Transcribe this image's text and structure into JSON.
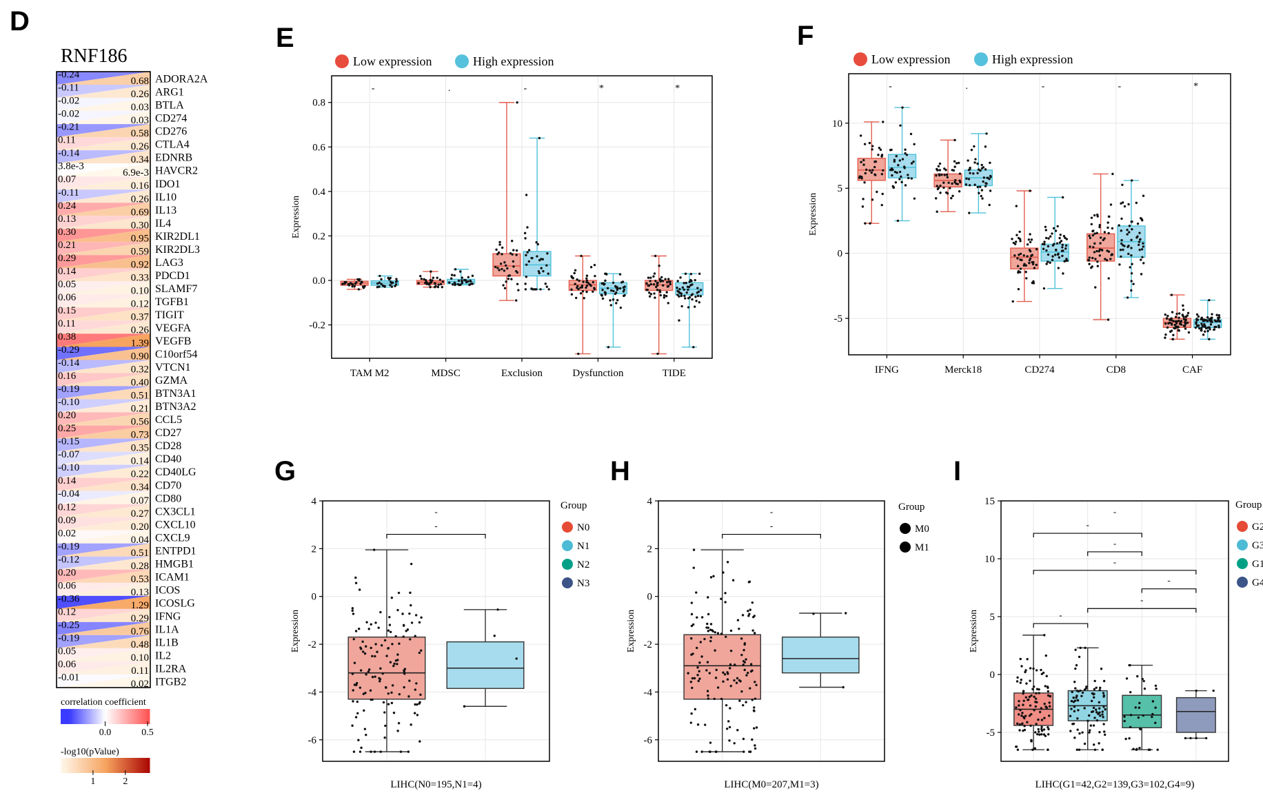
{
  "panels": {
    "D": "D",
    "E": "E",
    "F": "F",
    "G": "G",
    "H": "H",
    "I": "I"
  },
  "colors": {
    "low": "#e35d4e",
    "high": "#4fc1d9",
    "lowFill": "#f0a69b",
    "highFill": "#a6dced",
    "N0": "#e64b35",
    "N1": "#4dbbd5",
    "N2": "#00a087",
    "N3": "#3c5488",
    "G2": "#e64b35",
    "G3": "#4dbbd5",
    "G1": "#00a087",
    "G4": "#3c5488",
    "G2fill": "#f08d85",
    "G3fill": "#91d5e4",
    "G1fill": "#56c0a9",
    "G4fill": "#8e9bbc"
  },
  "chart_data": [
    {
      "id": "D",
      "type": "heatmap",
      "title": "RNF186",
      "columns": [
        "correlation coefficient",
        "-log10(pValue)"
      ],
      "rows": [
        {
          "gene": "ADORA2A",
          "cor": -0.24,
          "cor_label": "-0.24",
          "logp": 0.68,
          "logp_label": "0.68"
        },
        {
          "gene": "ARG1",
          "cor": -0.11,
          "cor_label": "-0.11",
          "logp": 0.26,
          "logp_label": "0.26"
        },
        {
          "gene": "BTLA",
          "cor": -0.02,
          "cor_label": "-0.02",
          "logp": 0.03,
          "logp_label": "0.03"
        },
        {
          "gene": "CD274",
          "cor": -0.02,
          "cor_label": "-0.02",
          "logp": 0.03,
          "logp_label": "0.03"
        },
        {
          "gene": "CD276",
          "cor": -0.21,
          "cor_label": "-0.21",
          "logp": 0.58,
          "logp_label": "0.58"
        },
        {
          "gene": "CTLA4",
          "cor": 0.11,
          "cor_label": "0.11",
          "logp": 0.26,
          "logp_label": "0.26"
        },
        {
          "gene": "EDNRB",
          "cor": -0.14,
          "cor_label": "-0.14",
          "logp": 0.34,
          "logp_label": "0.34"
        },
        {
          "gene": "HAVCR2",
          "cor": 0.0038,
          "cor_label": "3.8e-3",
          "logp": 0.0069,
          "logp_label": "6.9e-3"
        },
        {
          "gene": "IDO1",
          "cor": 0.07,
          "cor_label": "0.07",
          "logp": 0.16,
          "logp_label": "0.16"
        },
        {
          "gene": "IL10",
          "cor": -0.11,
          "cor_label": "-0.11",
          "logp": 0.26,
          "logp_label": "0.26"
        },
        {
          "gene": "IL13",
          "cor": 0.24,
          "cor_label": "0.24",
          "logp": 0.69,
          "logp_label": "0.69"
        },
        {
          "gene": "IL4",
          "cor": 0.13,
          "cor_label": "0.13",
          "logp": 0.3,
          "logp_label": "0.30"
        },
        {
          "gene": "KIR2DL1",
          "cor": 0.3,
          "cor_label": "0.30",
          "logp": 0.95,
          "logp_label": "0.95"
        },
        {
          "gene": "KIR2DL3",
          "cor": 0.21,
          "cor_label": "0.21",
          "logp": 0.59,
          "logp_label": "0.59"
        },
        {
          "gene": "LAG3",
          "cor": 0.29,
          "cor_label": "0.29",
          "logp": 0.92,
          "logp_label": "0.92"
        },
        {
          "gene": "PDCD1",
          "cor": 0.14,
          "cor_label": "0.14",
          "logp": 0.33,
          "logp_label": "0.33"
        },
        {
          "gene": "SLAMF7",
          "cor": 0.05,
          "cor_label": "0.05",
          "logp": 0.1,
          "logp_label": "0.10"
        },
        {
          "gene": "TGFB1",
          "cor": 0.06,
          "cor_label": "0.06",
          "logp": 0.12,
          "logp_label": "0.12"
        },
        {
          "gene": "TIGIT",
          "cor": 0.15,
          "cor_label": "0.15",
          "logp": 0.37,
          "logp_label": "0.37"
        },
        {
          "gene": "VEGFA",
          "cor": 0.11,
          "cor_label": "0.11",
          "logp": 0.26,
          "logp_label": "0.26"
        },
        {
          "gene": "VEGFB",
          "cor": 0.38,
          "cor_label": "0.38",
          "logp": 1.39,
          "logp_label": "1.39"
        },
        {
          "gene": "C10orf54",
          "cor": -0.29,
          "cor_label": "-0.29",
          "logp": 0.9,
          "logp_label": "0.90"
        },
        {
          "gene": "VTCN1",
          "cor": -0.14,
          "cor_label": "-0.14",
          "logp": 0.32,
          "logp_label": "0.32"
        },
        {
          "gene": "GZMA",
          "cor": 0.16,
          "cor_label": "0.16",
          "logp": 0.4,
          "logp_label": "0.40"
        },
        {
          "gene": "BTN3A1",
          "cor": -0.19,
          "cor_label": "-0.19",
          "logp": 0.51,
          "logp_label": "0.51"
        },
        {
          "gene": "BTN3A2",
          "cor": -0.1,
          "cor_label": "-0.10",
          "logp": 0.21,
          "logp_label": "0.21"
        },
        {
          "gene": "CCL5",
          "cor": 0.2,
          "cor_label": "0.20",
          "logp": 0.56,
          "logp_label": "0.56"
        },
        {
          "gene": "CD27",
          "cor": 0.25,
          "cor_label": "0.25",
          "logp": 0.73,
          "logp_label": "0.73"
        },
        {
          "gene": "CD28",
          "cor": -0.15,
          "cor_label": "-0.15",
          "logp": 0.35,
          "logp_label": "0.35"
        },
        {
          "gene": "CD40",
          "cor": -0.07,
          "cor_label": "-0.07",
          "logp": 0.14,
          "logp_label": "0.14"
        },
        {
          "gene": "CD40LG",
          "cor": -0.1,
          "cor_label": "-0.10",
          "logp": 0.22,
          "logp_label": "0.22"
        },
        {
          "gene": "CD70",
          "cor": 0.14,
          "cor_label": "0.14",
          "logp": 0.34,
          "logp_label": "0.34"
        },
        {
          "gene": "CD80",
          "cor": -0.04,
          "cor_label": "-0.04",
          "logp": 0.07,
          "logp_label": "0.07"
        },
        {
          "gene": "CX3CL1",
          "cor": 0.12,
          "cor_label": "0.12",
          "logp": 0.27,
          "logp_label": "0.27"
        },
        {
          "gene": "CXCL10",
          "cor": 0.09,
          "cor_label": "0.09",
          "logp": 0.2,
          "logp_label": "0.20"
        },
        {
          "gene": "CXCL9",
          "cor": 0.02,
          "cor_label": "0.02",
          "logp": 0.04,
          "logp_label": "0.04"
        },
        {
          "gene": "ENTPD1",
          "cor": -0.19,
          "cor_label": "-0.19",
          "logp": 0.51,
          "logp_label": "0.51"
        },
        {
          "gene": "HMGB1",
          "cor": -0.12,
          "cor_label": "-0.12",
          "logp": 0.28,
          "logp_label": "0.28"
        },
        {
          "gene": "ICAM1",
          "cor": 0.2,
          "cor_label": "0.20",
          "logp": 0.53,
          "logp_label": "0.53"
        },
        {
          "gene": "ICOS",
          "cor": 0.06,
          "cor_label": "0.06",
          "logp": 0.13,
          "logp_label": "0.13"
        },
        {
          "gene": "ICOSLG",
          "cor": -0.36,
          "cor_label": "-0.36",
          "logp": 1.29,
          "logp_label": "1.29"
        },
        {
          "gene": "IFNG",
          "cor": 0.12,
          "cor_label": "0.12",
          "logp": 0.29,
          "logp_label": "0.29"
        },
        {
          "gene": "IL1A",
          "cor": -0.25,
          "cor_label": "-0.25",
          "logp": 0.76,
          "logp_label": "0.76"
        },
        {
          "gene": "IL1B",
          "cor": -0.19,
          "cor_label": "-0.19",
          "logp": 0.48,
          "logp_label": "0.48"
        },
        {
          "gene": "IL2",
          "cor": 0.05,
          "cor_label": "0.05",
          "logp": 0.1,
          "logp_label": "0.10"
        },
        {
          "gene": "IL2RA",
          "cor": 0.06,
          "cor_label": "0.06",
          "logp": 0.11,
          "logp_label": "0.11"
        },
        {
          "gene": "ITGB2",
          "cor": -0.01,
          "cor_label": "-0.01",
          "logp": 0.02,
          "logp_label": "0.02"
        }
      ],
      "legend": {
        "cor_title": "correlation coefficient",
        "cor_range": [
          -0.5,
          0.5
        ],
        "cor_ticks": [
          {
            "v": 0.0,
            "label": "0.0"
          },
          {
            "v": 0.5,
            "label": "0.5"
          }
        ],
        "p_title": "-log10(pValue)",
        "p_range": [
          0,
          2.75
        ],
        "p_ticks": [
          {
            "v": 1,
            "label": "1"
          },
          {
            "v": 2,
            "label": "2"
          }
        ]
      }
    },
    {
      "id": "E",
      "type": "box",
      "legend": [
        "Low expression",
        "High expression"
      ],
      "ylabel": "Expression",
      "ylim": [
        -0.35,
        0.92
      ],
      "yticks": [
        -0.2,
        0.0,
        0.2,
        0.4,
        0.6,
        0.8
      ],
      "ytick_labels": [
        "-0.2",
        "0.0",
        "0.2",
        "0.4",
        "0.6",
        "0.8"
      ],
      "categories": [
        "TAM M2",
        "MDSC",
        "Exclusion",
        "Dysfunction",
        "TIDE"
      ],
      "sig": [
        "-",
        ".",
        "-",
        "*",
        "*"
      ],
      "series": [
        {
          "name": "Low expression",
          "n": 25,
          "boxes": [
            {
              "q1": -0.022,
              "med": -0.012,
              "q3": -0.004,
              "wmin": -0.04,
              "wmax": 0.005
            },
            {
              "q1": -0.018,
              "med": -0.008,
              "q3": 0.0,
              "wmin": -0.03,
              "wmax": 0.04
            },
            {
              "q1": 0.02,
              "med": 0.065,
              "q3": 0.12,
              "wmin": -0.09,
              "wmax": 0.8
            },
            {
              "q1": -0.045,
              "med": -0.02,
              "q3": 0.0,
              "wmin": -0.33,
              "wmax": 0.11
            },
            {
              "q1": -0.045,
              "med": -0.02,
              "q3": 0.0,
              "wmin": -0.33,
              "wmax": 0.11
            }
          ]
        },
        {
          "name": "High expression",
          "n": 25,
          "boxes": [
            {
              "q1": -0.022,
              "med": -0.012,
              "q3": -0.002,
              "wmin": -0.03,
              "wmax": 0.02
            },
            {
              "q1": -0.015,
              "med": -0.005,
              "q3": 0.005,
              "wmin": -0.02,
              "wmax": 0.05
            },
            {
              "q1": 0.02,
              "med": 0.07,
              "q3": 0.13,
              "wmin": -0.04,
              "wmax": 0.64
            },
            {
              "q1": -0.06,
              "med": -0.035,
              "q3": -0.01,
              "wmin": -0.3,
              "wmax": 0.03
            },
            {
              "q1": -0.065,
              "med": -0.04,
              "q3": -0.01,
              "wmin": -0.3,
              "wmax": 0.03
            }
          ]
        }
      ]
    },
    {
      "id": "F",
      "type": "box",
      "legend": [
        "Low expression",
        "High expression"
      ],
      "ylabel": "Expression",
      "ylim": [
        -7.8,
        13.8
      ],
      "yticks": [
        -5,
        0,
        5,
        10
      ],
      "ytick_labels": [
        "-5",
        "0",
        "5",
        "10"
      ],
      "categories": [
        "IFNG",
        "Merck18",
        "CD274",
        "CD8",
        "CAF"
      ],
      "sig": [
        "-",
        ".",
        "-",
        "-",
        "*"
      ],
      "series": [
        {
          "name": "Low expression",
          "n": 40,
          "boxes": [
            {
              "q1": 5.6,
              "med": 6.4,
              "q3": 7.3,
              "wmin": 2.3,
              "wmax": 10.1
            },
            {
              "q1": 5.1,
              "med": 5.6,
              "q3": 6.1,
              "wmin": 3.2,
              "wmax": 8.7
            },
            {
              "q1": -1.2,
              "med": -0.3,
              "q3": 0.4,
              "wmin": -3.7,
              "wmax": 4.8
            },
            {
              "q1": -0.6,
              "med": 0.4,
              "q3": 1.5,
              "wmin": -5.1,
              "wmax": 6.1
            },
            {
              "q1": -5.7,
              "med": -5.3,
              "q3": -5.0,
              "wmin": -6.6,
              "wmax": -3.2
            }
          ]
        },
        {
          "name": "High expression",
          "n": 40,
          "boxes": [
            {
              "q1": 5.8,
              "med": 6.6,
              "q3": 7.6,
              "wmin": 2.5,
              "wmax": 11.2
            },
            {
              "q1": 5.2,
              "med": 5.8,
              "q3": 6.4,
              "wmin": 3.1,
              "wmax": 9.2
            },
            {
              "q1": -0.6,
              "med": 0.1,
              "q3": 0.7,
              "wmin": -2.7,
              "wmax": 4.3
            },
            {
              "q1": -0.3,
              "med": 0.9,
              "q3": 2.1,
              "wmin": -3.4,
              "wmax": 5.6
            },
            {
              "q1": -5.7,
              "med": -5.3,
              "q3": -5.1,
              "wmin": -6.6,
              "wmax": -3.6
            }
          ]
        }
      ]
    },
    {
      "id": "G",
      "type": "box",
      "xlabel": "LIHC(N0=195,N1=4)",
      "ylabel": "Expression",
      "ylim": [
        -6.9,
        4.0
      ],
      "yticks": [
        -6,
        -4,
        -2,
        0,
        2,
        4
      ],
      "ytick_labels": [
        "-6",
        "-4",
        "-2",
        "0",
        "2",
        "4"
      ],
      "legend_title": "Group",
      "legend": [
        "N0",
        "N1",
        "N2",
        "N3"
      ],
      "groups": [
        {
          "name": "N0",
          "q1": -4.3,
          "med": -3.2,
          "q3": -1.7,
          "wmin": -6.5,
          "wmax": 1.95,
          "n": 140
        },
        {
          "name": "N1",
          "q1": -3.85,
          "med": -3.0,
          "q3": -1.9,
          "wmin": -4.6,
          "wmax": -0.55,
          "n": 4
        }
      ],
      "brackets": [
        {
          "from": 0,
          "to": 1,
          "y": 2.6,
          "label": "-"
        }
      ],
      "top_sig": "-"
    },
    {
      "id": "H",
      "type": "box",
      "xlabel": "LIHC(M0=207,M1=3)",
      "ylabel": "Expression",
      "ylim": [
        -6.9,
        4.0
      ],
      "yticks": [
        -6,
        -4,
        -2,
        0,
        2,
        4
      ],
      "ytick_labels": [
        "-6",
        "-4",
        "-2",
        "0",
        "2",
        "4"
      ],
      "legend_title": "Group",
      "legend": [
        "M0",
        "M1"
      ],
      "groups": [
        {
          "name": "M0",
          "q1": -4.3,
          "med": -2.9,
          "q3": -1.6,
          "wmin": -6.5,
          "wmax": 1.95,
          "n": 150
        },
        {
          "name": "M1",
          "q1": -3.2,
          "med": -2.6,
          "q3": -1.7,
          "wmin": -3.8,
          "wmax": -0.7,
          "n": 3
        }
      ],
      "brackets": [
        {
          "from": 0,
          "to": 1,
          "y": 2.6,
          "label": "-"
        }
      ],
      "top_sig": "-"
    },
    {
      "id": "I",
      "type": "box",
      "xlabel": "LIHC(G1=42,G2=139,G3=102,G4=9)",
      "ylabel": "Expression",
      "ylim": [
        -7.5,
        15.0
      ],
      "yticks": [
        -5,
        0,
        5,
        10,
        15
      ],
      "ytick_labels": [
        "-5",
        "0",
        "5",
        "10",
        "15"
      ],
      "legend_title": "Group",
      "legend": [
        "G2",
        "G3",
        "G1",
        "G4"
      ],
      "groups": [
        {
          "name": "G2",
          "q1": -4.4,
          "med": -3.0,
          "q3": -1.6,
          "wmin": -6.5,
          "wmax": 3.4,
          "n": 110
        },
        {
          "name": "G3",
          "q1": -4.0,
          "med": -2.7,
          "q3": -1.4,
          "wmin": -6.5,
          "wmax": 2.3,
          "n": 90
        },
        {
          "name": "G1",
          "q1": -4.6,
          "med": -3.5,
          "q3": -1.8,
          "wmin": -6.5,
          "wmax": 0.8,
          "n": 35
        },
        {
          "name": "G4",
          "q1": -5.0,
          "med": -3.2,
          "q3": -2.0,
          "wmin": -5.5,
          "wmax": -1.4,
          "n": 6
        }
      ],
      "brackets": [
        {
          "from": 0,
          "to": 1,
          "y": 4.4,
          "label": "-"
        },
        {
          "from": 1,
          "to": 3,
          "y": 5.7,
          "label": "-"
        },
        {
          "from": 2,
          "to": 3,
          "y": 7.4,
          "label": "-"
        },
        {
          "from": 0,
          "to": 3,
          "y": 9.0,
          "label": "-"
        },
        {
          "from": 1,
          "to": 2,
          "y": 10.6,
          "label": "-"
        },
        {
          "from": 0,
          "to": 2,
          "y": 12.2,
          "label": "-"
        }
      ],
      "top_sig": "-"
    }
  ]
}
